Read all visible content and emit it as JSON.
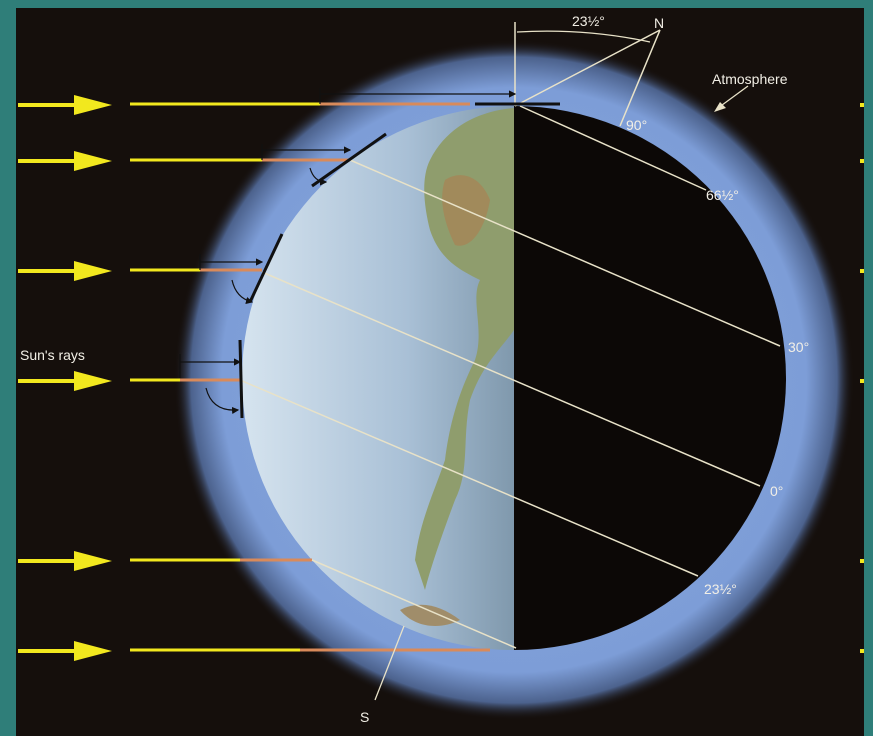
{
  "labels": {
    "tilt_angle": "23½°",
    "north": "N",
    "atmosphere": "Atmosphere",
    "lat_90": "90°",
    "lat_66": "66½°",
    "lat_30": "30°",
    "lat_0": "0°",
    "lat_23s": "23½°",
    "sun_rays": "Sun's rays",
    "south": "S"
  },
  "colors": {
    "background": "#150f0c",
    "atmosphere": "#7e9fd8",
    "ray_yellow": "#f2e81e",
    "ray_orange": "#d98a5a",
    "earth_day": "#b9cfe2",
    "earth_night": "#0c0806",
    "teal_border": "#2f7e79"
  },
  "icons": {
    "ray_arrow": "arrow-right-icon"
  }
}
